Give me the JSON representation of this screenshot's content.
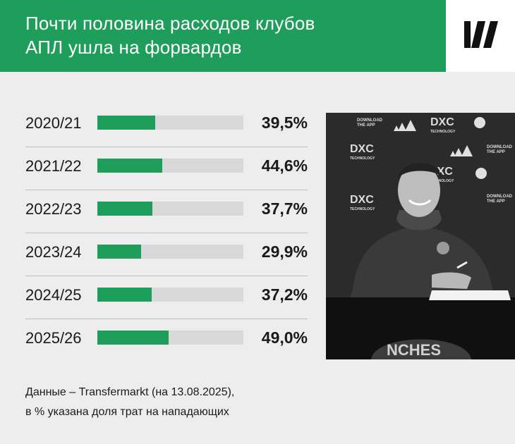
{
  "header": {
    "title_line1": "Почти половина расходов клубов",
    "title_line2": "АПЛ ушла на форвардов"
  },
  "colors": {
    "accent": "#1f9e5b",
    "track": "#d8d8d8"
  },
  "chart_data": {
    "type": "bar",
    "orientation": "horizontal",
    "categories": [
      "2020/21",
      "2021/22",
      "2022/23",
      "2023/24",
      "2024/25",
      "2025/26"
    ],
    "values": [
      39.5,
      44.6,
      37.7,
      29.9,
      37.2,
      49.0
    ],
    "value_labels": [
      "39,5%",
      "44,6%",
      "37,7%",
      "29,9%",
      "37,2%",
      "49,0%"
    ],
    "xlim": [
      0,
      100
    ],
    "unit": "%"
  },
  "photo": {
    "banner_texts": [
      "DXC",
      "TECHNOLOGY",
      "DOWNLOAD",
      "THE APP",
      "NCHES"
    ]
  },
  "note": {
    "line1": "Данные – Transfermarkt (на 13.08.2025),",
    "line2": "в % указана доля трат на нападающих"
  }
}
